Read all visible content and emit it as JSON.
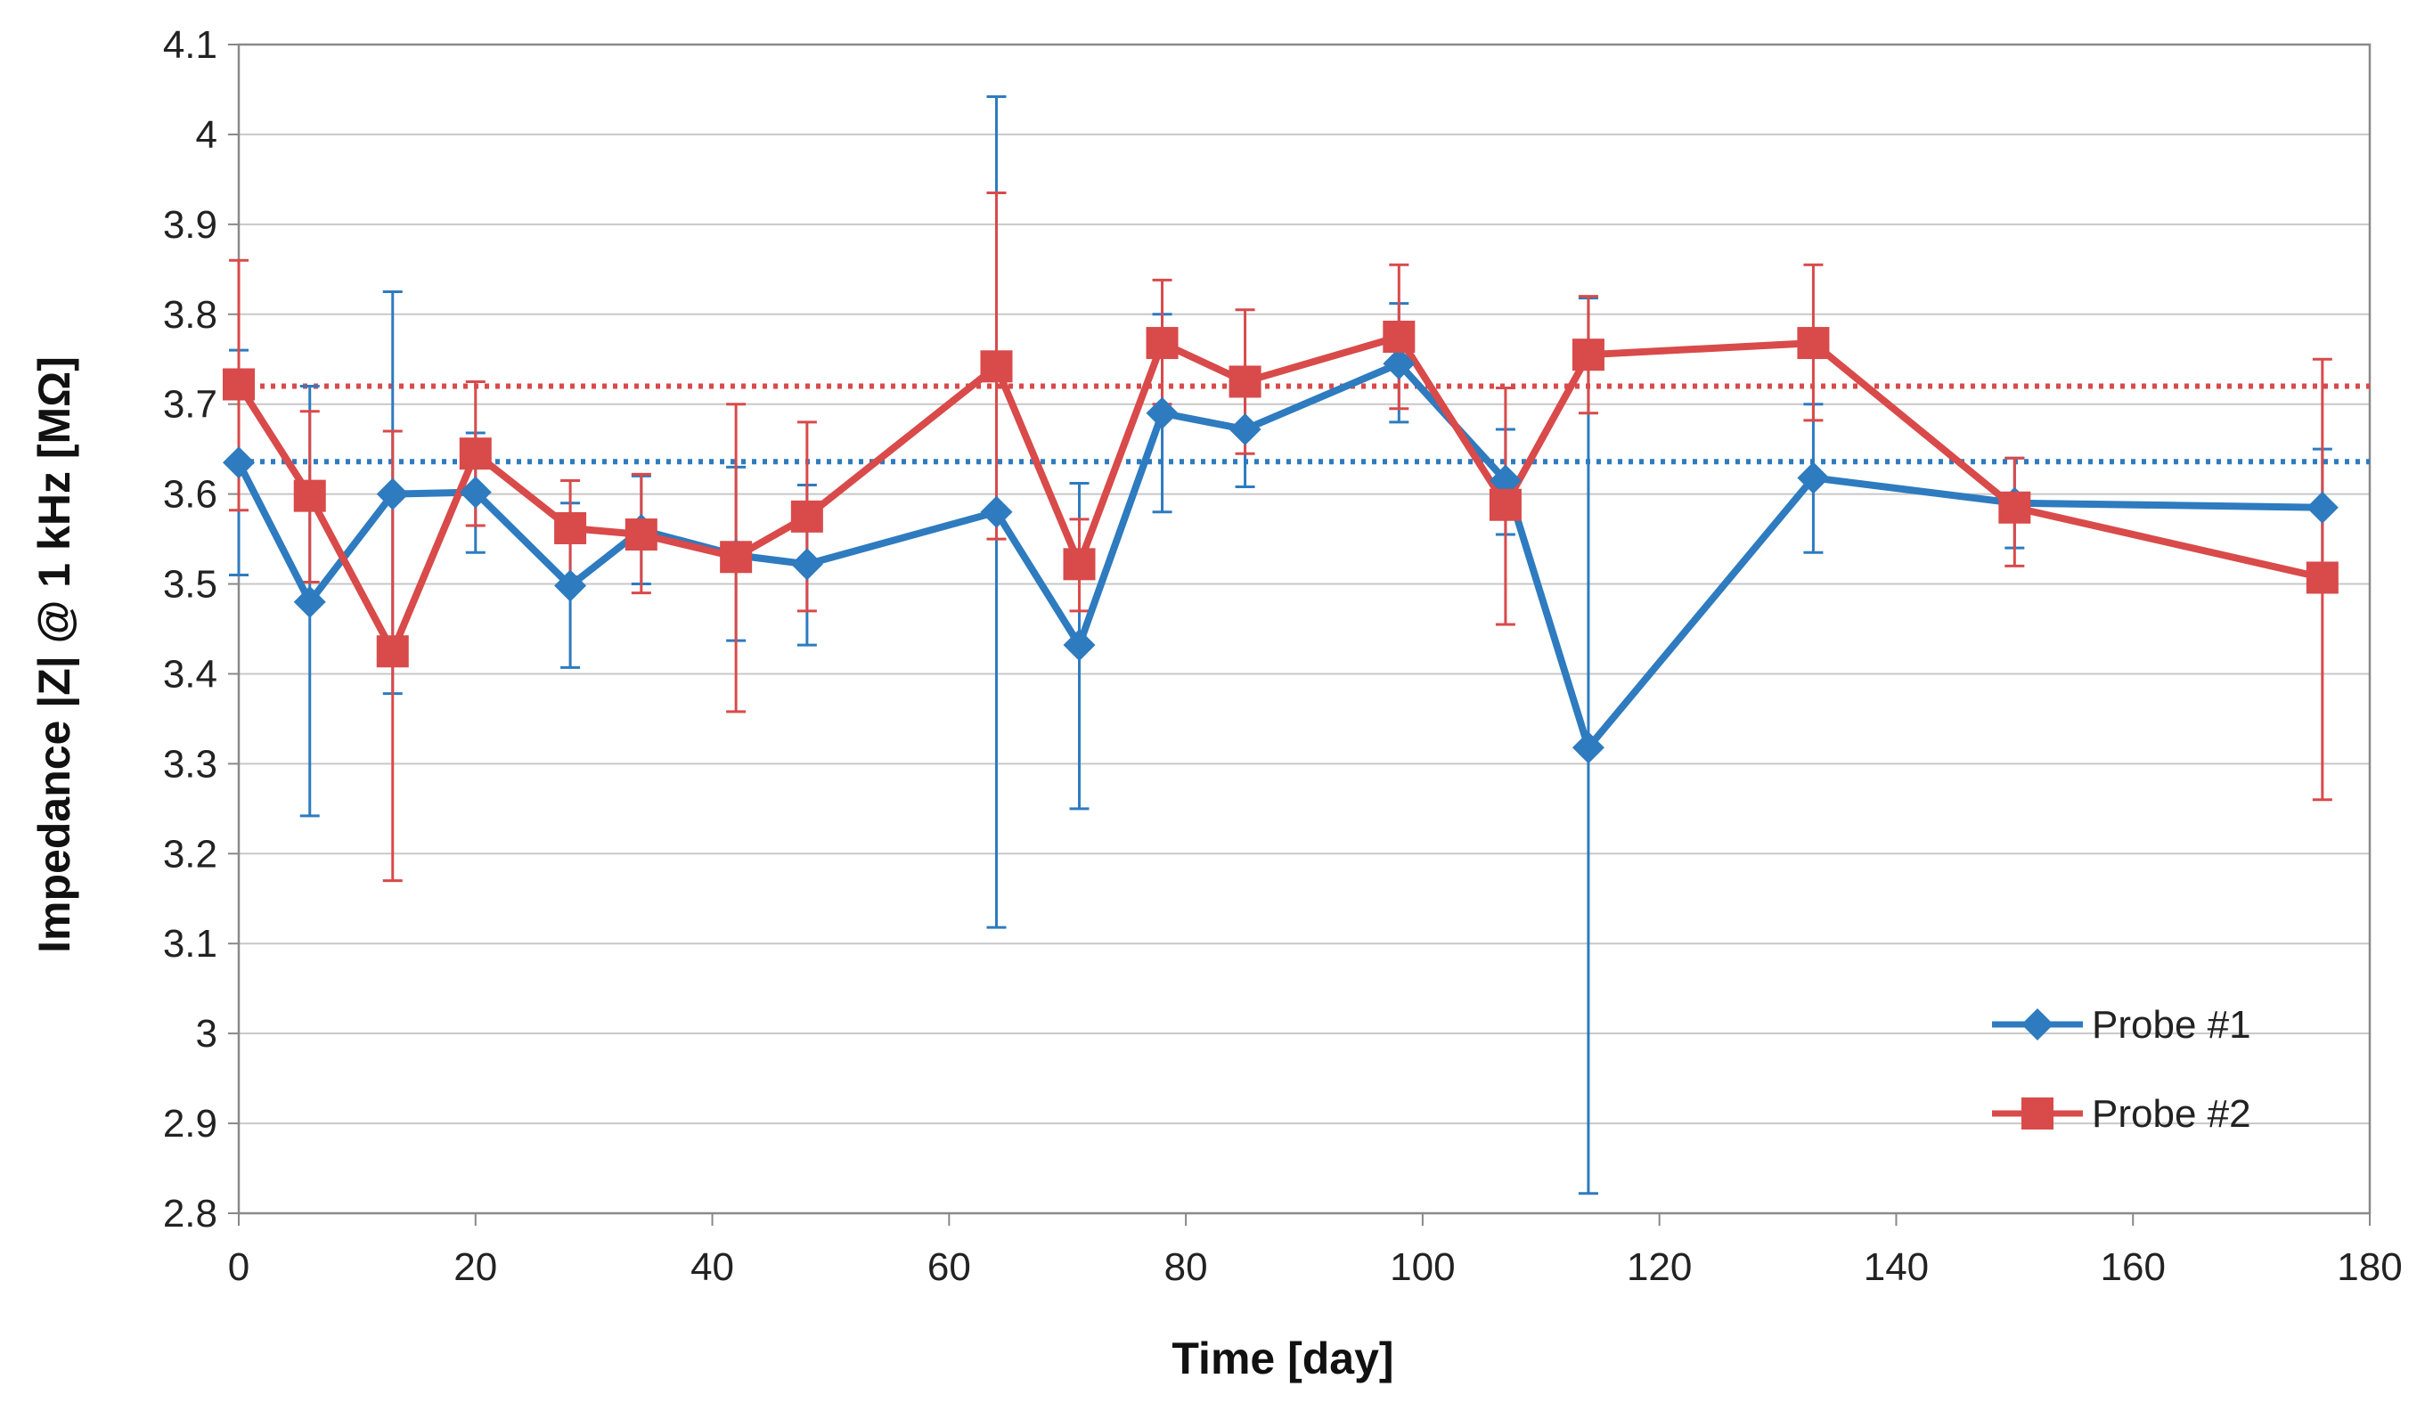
{
  "chart_data": {
    "type": "line",
    "xlabel": "Time [day]",
    "ylabel": "Impedance |Z| @ 1 kHz [MΩ]",
    "xlim": [
      0,
      180
    ],
    "ylim": [
      2.8,
      4.1
    ],
    "xticks": [
      0,
      20,
      40,
      60,
      80,
      100,
      120,
      140,
      160,
      180
    ],
    "xtick_labels": [
      "0",
      "20",
      "40",
      "60",
      "80",
      "100",
      "120",
      "140",
      "160",
      "180"
    ],
    "yticks": [
      2.8,
      2.9,
      3.0,
      3.1,
      3.2,
      3.3,
      3.4,
      3.5,
      3.6,
      3.7,
      3.8,
      3.9,
      4.0,
      4.1
    ],
    "ytick_labels": [
      "2.8",
      "2.9",
      "3",
      "3.1",
      "3.2",
      "3.3",
      "3.4",
      "3.5",
      "3.6",
      "3.7",
      "3.8",
      "3.9",
      "4",
      "4.1"
    ],
    "grid": "horizontal",
    "legend_position": "bottom-right",
    "series": [
      {
        "name": "Probe #1",
        "color": "#2e7bbf",
        "marker": "diamond",
        "x": [
          0,
          6,
          13,
          20,
          28,
          34,
          42,
          48,
          64,
          71,
          78,
          85,
          98,
          107,
          114,
          133,
          150,
          176
        ],
        "y": [
          3.635,
          3.48,
          3.6,
          3.602,
          3.498,
          3.56,
          3.532,
          3.522,
          3.58,
          3.432,
          3.69,
          3.672,
          3.745,
          3.615,
          3.318,
          3.618,
          3.59,
          3.585
        ],
        "err_low": [
          3.51,
          3.242,
          3.378,
          3.535,
          3.407,
          3.5,
          3.437,
          3.432,
          3.118,
          3.25,
          3.58,
          3.608,
          3.68,
          3.555,
          2.822,
          3.535,
          3.54,
          3.52
        ],
        "err_high": [
          3.76,
          3.72,
          3.825,
          3.668,
          3.59,
          3.62,
          3.63,
          3.61,
          4.042,
          3.612,
          3.8,
          3.735,
          3.812,
          3.672,
          3.818,
          3.7,
          3.64,
          3.65
        ],
        "mean_line": 3.636
      },
      {
        "name": "Probe #2",
        "color": "#d94a4a",
        "marker": "square",
        "x": [
          0,
          6,
          13,
          20,
          28,
          34,
          42,
          48,
          64,
          71,
          78,
          85,
          98,
          107,
          114,
          133,
          150,
          176
        ],
        "y": [
          3.722,
          3.598,
          3.425,
          3.645,
          3.562,
          3.555,
          3.53,
          3.575,
          3.742,
          3.522,
          3.768,
          3.725,
          3.775,
          3.588,
          3.755,
          3.768,
          3.585,
          3.507
        ],
        "err_low": [
          3.582,
          3.502,
          3.17,
          3.565,
          3.508,
          3.49,
          3.358,
          3.47,
          3.55,
          3.47,
          3.7,
          3.645,
          3.695,
          3.455,
          3.69,
          3.682,
          3.52,
          3.26
        ],
        "err_high": [
          3.86,
          3.692,
          3.67,
          3.725,
          3.615,
          3.622,
          3.7,
          3.68,
          3.935,
          3.572,
          3.838,
          3.805,
          3.855,
          3.718,
          3.82,
          3.855,
          3.64,
          3.75
        ],
        "mean_line": 3.72
      }
    ]
  }
}
